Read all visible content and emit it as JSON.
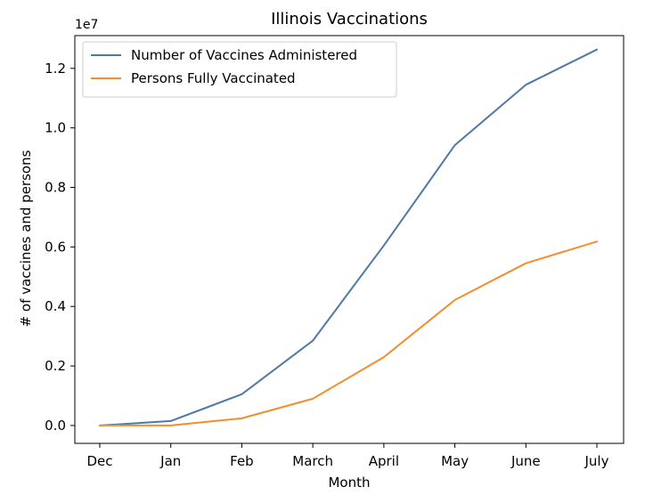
{
  "chart_data": {
    "type": "line",
    "title": "Illinois Vaccinations",
    "xlabel": "Month",
    "ylabel": "# of vaccines and persons",
    "offset_label": "1e7",
    "categories": [
      "Dec",
      "Jan",
      "Feb",
      "March",
      "April",
      "May",
      "June",
      "July"
    ],
    "ylim": [
      -0.06,
      1.31
    ],
    "yticks": [
      0.0,
      0.2,
      0.4,
      0.6,
      0.8,
      1.0,
      1.2
    ],
    "ytick_labels": [
      "0.0",
      "0.2",
      "0.4",
      "0.6",
      "0.8",
      "1.0",
      "1.2"
    ],
    "y_scale_factor": 10000000,
    "grid": false,
    "legend_position": "upper-left",
    "series": [
      {
        "name": "Number of Vaccines Administered",
        "color": "#4e79a7",
        "values": [
          0.0,
          0.015,
          0.105,
          0.285,
          0.605,
          0.942,
          1.145,
          1.263
        ]
      },
      {
        "name": "Persons Fully Vaccinated",
        "color": "#f28e2b",
        "values": [
          0.0,
          0.0,
          0.024,
          0.09,
          0.23,
          0.422,
          0.545,
          0.618
        ]
      }
    ]
  }
}
